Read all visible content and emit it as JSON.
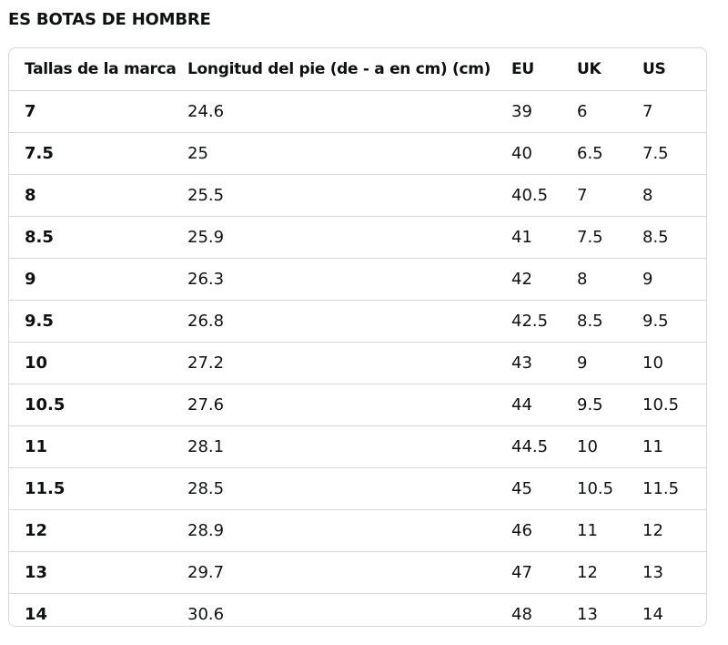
{
  "title": "ES BOTAS DE HOMBRE",
  "table": {
    "headers": [
      "Tallas de la marca",
      "Longitud del pie (de - a en cm) (cm)",
      "EU",
      "UK",
      "US"
    ],
    "rows": [
      [
        "7",
        "24.6",
        "39",
        "6",
        "7"
      ],
      [
        "7.5",
        "25",
        "40",
        "6.5",
        "7.5"
      ],
      [
        "8",
        "25.5",
        "40.5",
        "7",
        "8"
      ],
      [
        "8.5",
        "25.9",
        "41",
        "7.5",
        "8.5"
      ],
      [
        "9",
        "26.3",
        "42",
        "8",
        "9"
      ],
      [
        "9.5",
        "26.8",
        "42.5",
        "8.5",
        "9.5"
      ],
      [
        "10",
        "27.2",
        "43",
        "9",
        "10"
      ],
      [
        "10.5",
        "27.6",
        "44",
        "9.5",
        "10.5"
      ],
      [
        "11",
        "28.1",
        "44.5",
        "10",
        "11"
      ],
      [
        "11.5",
        "28.5",
        "45",
        "10.5",
        "11.5"
      ],
      [
        "12",
        "28.9",
        "46",
        "11",
        "12"
      ],
      [
        "13",
        "29.7",
        "47",
        "12",
        "13"
      ],
      [
        "14",
        "30.6",
        "48",
        "13",
        "14"
      ]
    ]
  },
  "colors": {
    "text": "#0f1111",
    "border": "#d5d9d9",
    "background": "#ffffff"
  }
}
